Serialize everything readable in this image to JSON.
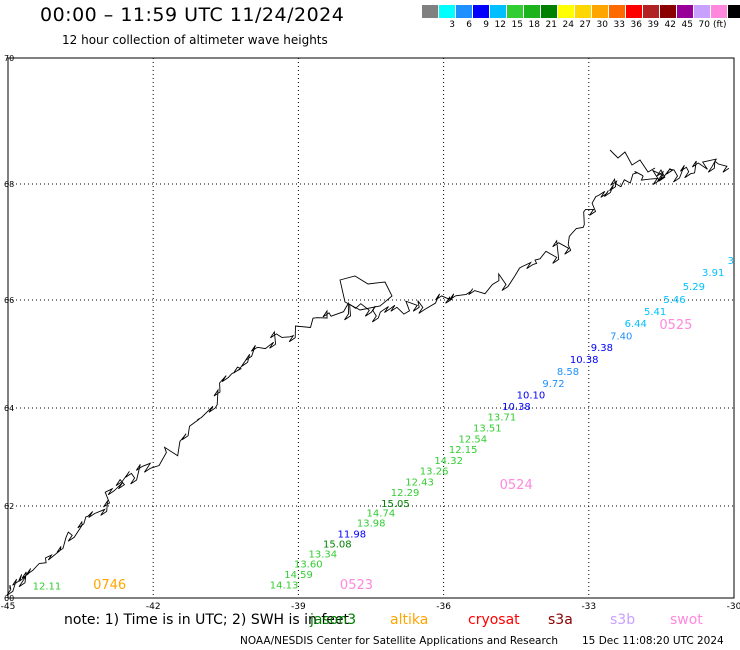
{
  "header": {
    "title": "00:00 – 11:59 UTC 11/24/2024",
    "subtitle": "12 hour collection of altimeter wave heights"
  },
  "legend": {
    "unit": "(ft)",
    "colors": [
      "#808080",
      "#00ffff",
      "#1e90ff",
      "#0000ff",
      "#00bfff",
      "#32cd32",
      "#1db31d",
      "#008000",
      "#ffff00",
      "#ffd700",
      "#ffa500",
      "#ff6a00",
      "#ff0000",
      "#b22222",
      "#8b0000",
      "#990099",
      "#c8a0ff",
      "#ff88dd",
      "#000000"
    ],
    "labels": [
      "3",
      "6",
      "9",
      "12",
      "15",
      "18",
      "21",
      "24",
      "27",
      "30",
      "33",
      "36",
      "39",
      "42",
      "45",
      "70"
    ]
  },
  "chart_data": {
    "type": "scatter",
    "xlim": [
      -45,
      -30
    ],
    "ylim": [
      60,
      70
    ],
    "x_ticks": [
      "-45",
      "-42",
      "-39",
      "-36",
      "-33",
      "-30"
    ],
    "y_ticks": [
      "60",
      "62",
      "64",
      "66",
      "68",
      "70"
    ],
    "grid": true,
    "x_tick_values": [
      -45,
      -42,
      -39,
      -36,
      -33,
      -30
    ],
    "y_tick_values": [
      60,
      62,
      64,
      66,
      68,
      70
    ],
    "observations": [
      {
        "lon": -30.0,
        "lat": 66.62,
        "label": "3",
        "color": "#00bfff"
      },
      {
        "lon": -30.2,
        "lat": 66.41,
        "label": "3.91",
        "color": "#00bfff"
      },
      {
        "lon": -30.6,
        "lat": 66.17,
        "label": "5.29",
        "color": "#00bfff"
      },
      {
        "lon": -31.0,
        "lat": 65.94,
        "label": "5.46",
        "color": "#00bfff"
      },
      {
        "lon": -31.4,
        "lat": 65.72,
        "label": "5.41",
        "color": "#00bfff"
      },
      {
        "lon": -31.8,
        "lat": 65.5,
        "label": "6.44",
        "color": "#00bfff"
      },
      {
        "lon": -32.1,
        "lat": 65.27,
        "label": "7.40",
        "color": "#1e90ff"
      },
      {
        "lon": -32.5,
        "lat": 65.06,
        "label": "9.38",
        "color": "#0000ff"
      },
      {
        "lon": -32.8,
        "lat": 64.83,
        "label": "10.38",
        "color": "#0000ff"
      },
      {
        "lon": -33.2,
        "lat": 64.61,
        "label": "8.58",
        "color": "#1e90ff"
      },
      {
        "lon": -33.5,
        "lat": 64.39,
        "label": "9.72",
        "color": "#1e90ff"
      },
      {
        "lon": -33.9,
        "lat": 64.18,
        "label": "10.10",
        "color": "#0000ff"
      },
      {
        "lon": -34.2,
        "lat": 63.96,
        "label": "10.38",
        "color": "#0000ff"
      },
      {
        "lon": -34.5,
        "lat": 63.74,
        "label": "13.71",
        "color": "#32cd32"
      },
      {
        "lon": -34.8,
        "lat": 63.52,
        "label": "13.51",
        "color": "#32cd32"
      },
      {
        "lon": -35.1,
        "lat": 63.3,
        "label": "12.54",
        "color": "#32cd32"
      },
      {
        "lon": -35.3,
        "lat": 63.08,
        "label": "12.15",
        "color": "#32cd32"
      },
      {
        "lon": -35.6,
        "lat": 62.86,
        "label": "14.32",
        "color": "#32cd32"
      },
      {
        "lon": -35.9,
        "lat": 62.64,
        "label": "13.26",
        "color": "#32cd32"
      },
      {
        "lon": -36.2,
        "lat": 62.42,
        "label": "12.43",
        "color": "#32cd32"
      },
      {
        "lon": -36.5,
        "lat": 62.2,
        "label": "12.29",
        "color": "#32cd32"
      },
      {
        "lon": -36.7,
        "lat": 61.98,
        "label": "15.05",
        "color": "#008000"
      },
      {
        "lon": -37.0,
        "lat": 61.77,
        "label": "14.74",
        "color": "#32cd32"
      },
      {
        "lon": -37.2,
        "lat": 61.55,
        "label": "13.98",
        "color": "#32cd32"
      },
      {
        "lon": -37.6,
        "lat": 61.32,
        "label": "11.98",
        "color": "#0000ff"
      },
      {
        "lon": -37.9,
        "lat": 61.1,
        "label": "15.08",
        "color": "#008000"
      },
      {
        "lon": -38.2,
        "lat": 60.88,
        "label": "13.34",
        "color": "#32cd32"
      },
      {
        "lon": -38.5,
        "lat": 60.66,
        "label": "13.60",
        "color": "#32cd32"
      },
      {
        "lon": -38.7,
        "lat": 60.43,
        "label": "14.59",
        "color": "#32cd32"
      },
      {
        "lon": -39.0,
        "lat": 60.21,
        "label": "14.13",
        "color": "#32cd32"
      },
      {
        "lon": -43.9,
        "lat": 60.19,
        "label": "12.11",
        "color": "#32cd32"
      }
    ],
    "pass_times": [
      {
        "lon": -31.2,
        "lat": 65.46,
        "label": "0525",
        "color": "#ff88dd"
      },
      {
        "lon": -34.5,
        "lat": 62.35,
        "label": "0524",
        "color": "#ff88dd"
      },
      {
        "lon": -37.8,
        "lat": 60.2,
        "label": "0523",
        "color": "#ff88dd"
      },
      {
        "lon": -42.9,
        "lat": 60.2,
        "label": "0746",
        "color": "#ffa500"
      }
    ]
  },
  "note": {
    "text": "note:  1) Time is in UTC;  2) SWH is in feet",
    "satellites": [
      {
        "name": "jason3",
        "color": "#008000"
      },
      {
        "name": "altika",
        "color": "#ffa500"
      },
      {
        "name": "cryosat",
        "color": "#ff0000"
      },
      {
        "name": "s3a",
        "color": "#8b0000"
      },
      {
        "name": "s3b",
        "color": "#c8a0ff"
      },
      {
        "name": "swot",
        "color": "#ff88dd"
      }
    ]
  },
  "footer": {
    "credit": "NOAA/NESDIS Center for Satellite Applications and Research",
    "generated": "15 Dec 11:08:20 UTC 2024"
  }
}
